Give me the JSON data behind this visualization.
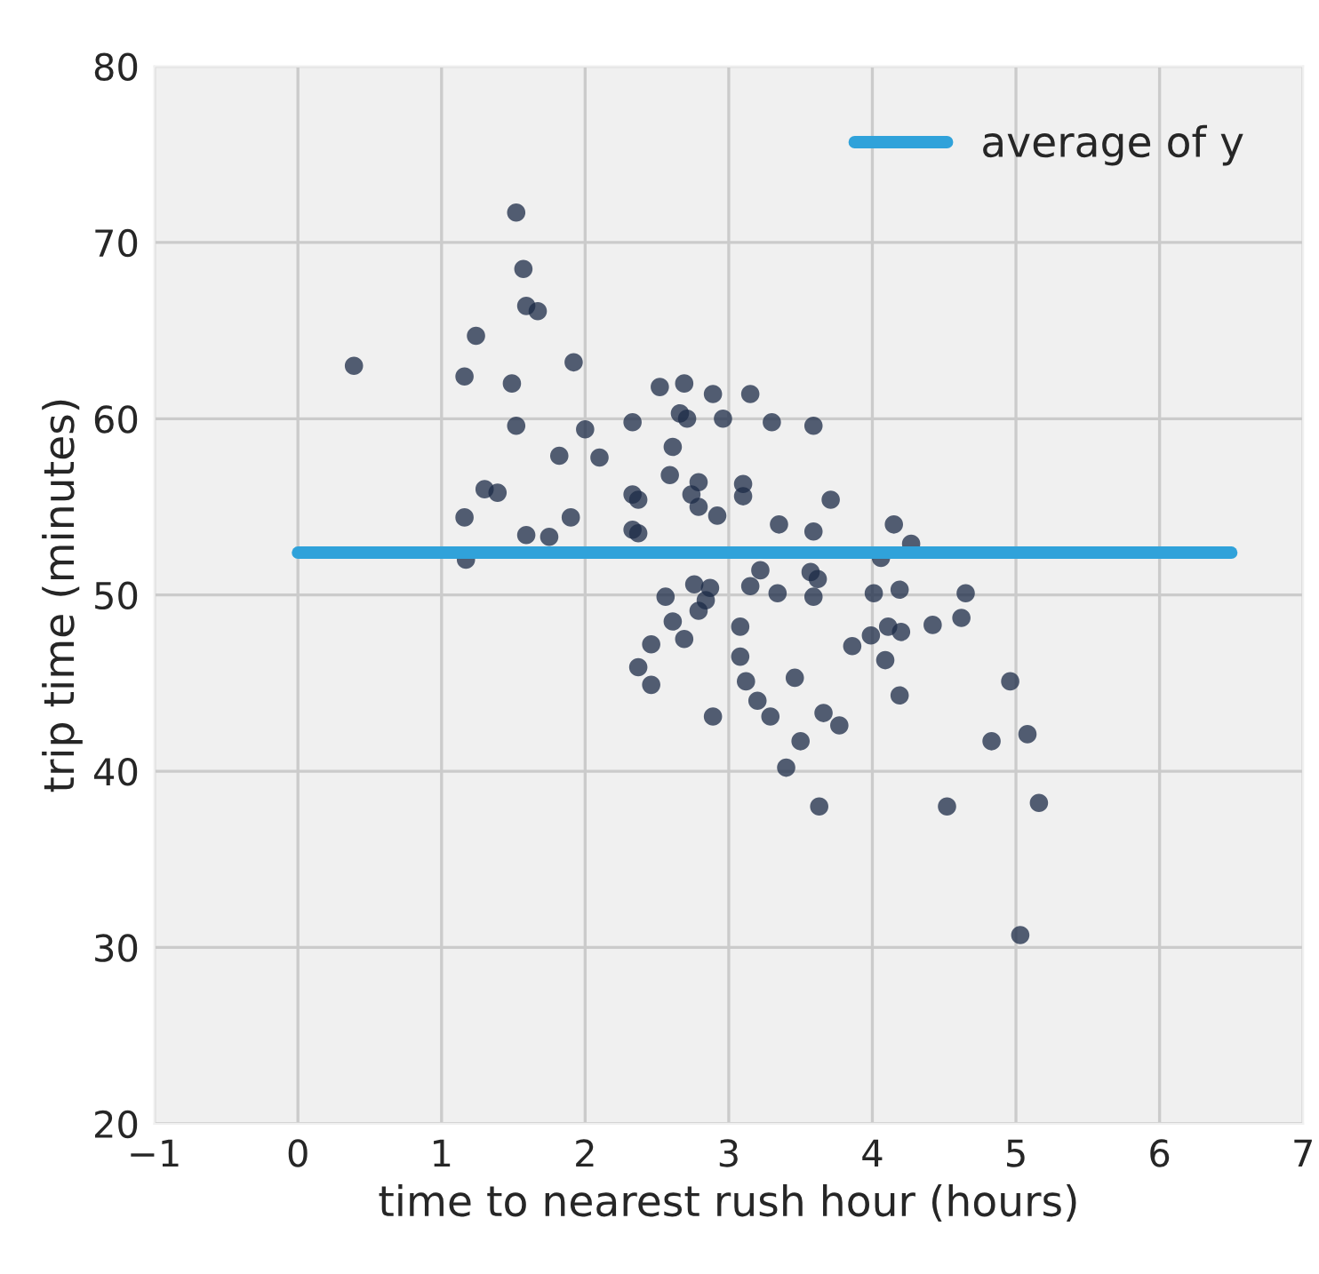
{
  "chart_data": {
    "type": "scatter",
    "xlabel": "time to nearest rush hour (hours)",
    "ylabel": "trip time (minutes)",
    "xlim": [
      -1,
      7
    ],
    "xticks": [
      {
        "value": -1,
        "label": "−1"
      },
      0,
      1,
      2,
      3,
      4,
      5,
      6,
      7
    ],
    "ylim": [
      20,
      80
    ],
    "yticks": [
      20,
      30,
      40,
      50,
      60,
      70,
      80
    ],
    "grid": true,
    "legend": "top right",
    "marker": "circle",
    "series": [
      {
        "color": "#1c2b47",
        "x": [
          0.39,
          1.52,
          1.57,
          1.59,
          1.67,
          1.24,
          1.16,
          1.49,
          1.92,
          1.52,
          2.0,
          1.82,
          2.1,
          1.3,
          1.39,
          1.16,
          1.9,
          1.59,
          1.75,
          1.17,
          2.33,
          2.33,
          2.37,
          2.33,
          2.37,
          2.52,
          2.69,
          2.89,
          3.15,
          2.66,
          2.71,
          2.96,
          3.3,
          3.59,
          2.61,
          2.59,
          2.79,
          2.74,
          2.79,
          2.92,
          3.1,
          3.1,
          3.71,
          3.35,
          3.59,
          4.15,
          4.27,
          4.06,
          3.22,
          3.57,
          3.62,
          3.15,
          2.76,
          2.87,
          2.84,
          2.79,
          2.56,
          3.34,
          3.59,
          4.01,
          4.19,
          4.65,
          4.62,
          4.42,
          4.11,
          4.2,
          3.99,
          3.86,
          4.09,
          2.61,
          2.69,
          2.46,
          2.37,
          2.46,
          3.08,
          3.08,
          3.12,
          3.46,
          3.2,
          3.29,
          2.89,
          3.66,
          3.77,
          3.5,
          4.19,
          4.96,
          4.83,
          5.08,
          3.4,
          3.63,
          4.52,
          5.16,
          5.03
        ],
        "values": [
          63.0,
          71.7,
          68.5,
          66.4,
          66.1,
          64.7,
          62.4,
          62.0,
          63.2,
          59.6,
          59.4,
          57.9,
          57.8,
          56.0,
          55.8,
          54.4,
          54.4,
          53.4,
          53.3,
          52.0,
          59.8,
          55.7,
          55.4,
          53.7,
          53.5,
          61.8,
          62.0,
          61.4,
          61.4,
          60.3,
          60.0,
          60.0,
          59.8,
          59.6,
          58.4,
          56.8,
          56.4,
          55.7,
          55.0,
          54.5,
          56.3,
          55.6,
          55.4,
          54.0,
          53.6,
          54.0,
          52.9,
          52.1,
          51.4,
          51.3,
          50.9,
          50.5,
          50.6,
          50.4,
          49.7,
          49.1,
          49.9,
          50.1,
          49.9,
          50.1,
          50.3,
          50.1,
          48.7,
          48.3,
          48.2,
          47.9,
          47.7,
          47.1,
          46.3,
          48.5,
          47.5,
          47.2,
          45.9,
          44.9,
          48.2,
          46.5,
          45.1,
          45.3,
          44.0,
          43.1,
          43.1,
          43.3,
          42.6,
          41.7,
          44.3,
          45.1,
          41.7,
          42.1,
          40.2,
          38.0,
          38.0,
          38.2,
          30.7
        ]
      },
      {
        "type": "line",
        "name": "average of y",
        "color": "#30a2da",
        "x": [
          0,
          6.5
        ],
        "values": [
          52.4,
          52.4
        ],
        "marker": "none",
        "line_style": "solid"
      }
    ]
  }
}
